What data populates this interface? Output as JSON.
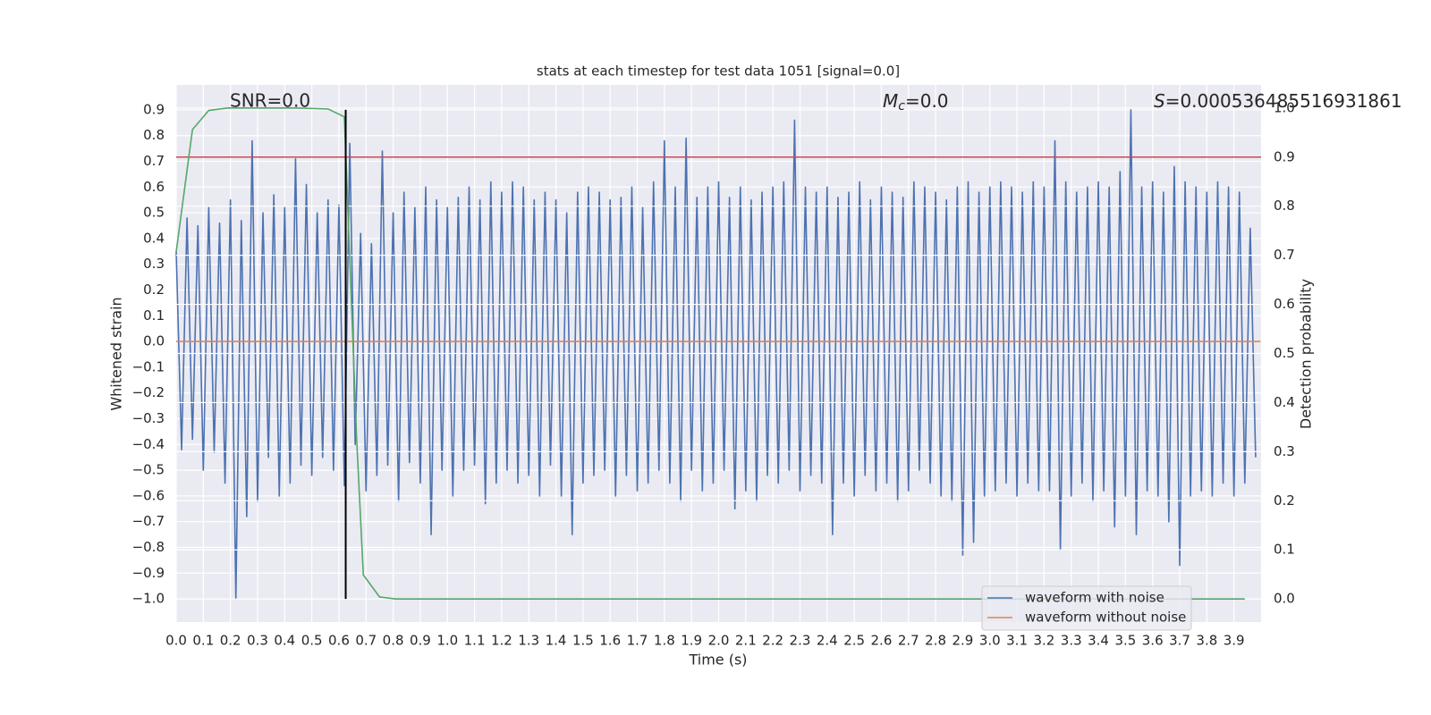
{
  "chart_data": {
    "type": "line",
    "title": "stats at each timestep for test data 1051 [signal=0.0]",
    "xlabel": "Time (s)",
    "ylabel": "Whitened strain",
    "y2label": "Detection probability",
    "annotations": {
      "snr": {
        "text": "SNR=0.0"
      },
      "mc": {
        "symbol": "M",
        "subscript": "c",
        "text": "=0.0"
      },
      "s": {
        "symbol": "S",
        "text": "=0.000536485516931861"
      }
    },
    "xlim": [
      0,
      4.0
    ],
    "ylim": [
      -1.09,
      0.997
    ],
    "y2lim": [
      -0.047,
      1.047
    ],
    "grid": true,
    "legend": "lower right",
    "xticks": [
      {
        "value": 0,
        "label": "0.0"
      },
      0.1,
      0.2,
      0.3,
      0.4,
      0.5,
      0.6,
      0.7,
      0.8,
      0.9,
      {
        "value": 1,
        "label": "1.0"
      },
      1.1,
      1.2,
      1.3,
      1.4,
      1.5,
      1.6,
      1.7,
      1.8,
      1.9,
      {
        "value": 2,
        "label": "2.0"
      },
      2.1,
      2.2,
      2.3,
      2.4,
      2.5,
      2.6,
      2.7,
      2.8,
      2.9,
      {
        "value": 3,
        "label": "3.0"
      },
      3.1,
      3.2,
      3.3,
      3.4,
      3.5,
      3.6,
      3.7,
      3.8,
      3.9
    ],
    "yticks": [
      0.9,
      0.8,
      0.7,
      0.6,
      0.5,
      0.4,
      0.3,
      0.2,
      0.1,
      {
        "value": 0,
        "label": "0.0"
      },
      {
        "value": -0.1,
        "label": "−0.1"
      },
      {
        "value": -0.2,
        "label": "−0.2"
      },
      {
        "value": -0.3,
        "label": "−0.3"
      },
      {
        "value": -0.4,
        "label": "−0.4"
      },
      {
        "value": -0.5,
        "label": "−0.5"
      },
      {
        "value": -0.6,
        "label": "−0.6"
      },
      {
        "value": -0.7,
        "label": "−0.7"
      },
      {
        "value": -0.8,
        "label": "−0.8"
      },
      {
        "value": -0.9,
        "label": "−0.9"
      },
      {
        "value": -1,
        "label": "−1.0"
      }
    ],
    "y2ticks": [
      {
        "value": 0,
        "label": "0.0"
      },
      0.1,
      0.2,
      0.3,
      0.4,
      0.5,
      0.6,
      0.7,
      0.8,
      0.9,
      {
        "value": 1,
        "label": "1.0"
      }
    ],
    "hlines": [
      {
        "value": 0.9,
        "axis": "y2",
        "color": "#c44e52"
      }
    ],
    "vlines": [
      {
        "value": 0.625,
        "ymin": -1.0,
        "ymax": 0.9,
        "color": "#000000"
      }
    ],
    "series": [
      {
        "name": "waveform with noise",
        "color": "#4c72b0",
        "x": [
          0,
          0.02,
          0.04,
          0.06,
          0.08,
          0.1,
          0.12,
          0.14,
          0.16,
          0.18,
          0.2,
          0.22,
          0.24,
          0.26,
          0.28,
          0.3,
          0.32,
          0.34,
          0.36,
          0.38,
          0.4,
          0.42,
          0.44,
          0.46,
          0.48,
          0.5,
          0.52,
          0.54,
          0.56,
          0.58,
          0.6,
          0.62,
          0.64,
          0.66,
          0.68,
          0.7,
          0.72,
          0.74,
          0.76,
          0.78,
          0.8,
          0.82,
          0.84,
          0.86,
          0.88,
          0.9,
          0.92,
          0.94,
          0.96,
          0.98,
          1,
          1.02,
          1.04,
          1.06,
          1.08,
          1.1,
          1.12,
          1.14,
          1.16,
          1.18,
          1.2,
          1.22,
          1.24,
          1.26,
          1.28,
          1.3,
          1.32,
          1.34,
          1.36,
          1.38,
          1.4,
          1.42,
          1.44,
          1.46,
          1.48,
          1.5,
          1.52,
          1.54,
          1.56,
          1.58,
          1.6,
          1.62,
          1.64,
          1.66,
          1.68,
          1.7,
          1.72,
          1.74,
          1.76,
          1.78,
          1.8,
          1.82,
          1.84,
          1.86,
          1.88,
          1.9,
          1.92,
          1.94,
          1.96,
          1.98,
          2,
          2.02,
          2.04,
          2.06,
          2.08,
          2.1,
          2.12,
          2.14,
          2.16,
          2.18,
          2.2,
          2.22,
          2.24,
          2.26,
          2.28,
          2.3,
          2.32,
          2.34,
          2.36,
          2.38,
          2.4,
          2.42,
          2.44,
          2.46,
          2.48,
          2.5,
          2.52,
          2.54,
          2.56,
          2.58,
          2.6,
          2.62,
          2.64,
          2.66,
          2.68,
          2.7,
          2.72,
          2.74,
          2.76,
          2.78,
          2.8,
          2.82,
          2.84,
          2.86,
          2.88,
          2.9,
          2.92,
          2.94,
          2.96,
          2.98,
          3,
          3.02,
          3.04,
          3.06,
          3.08,
          3.1,
          3.12,
          3.14,
          3.16,
          3.18,
          3.2,
          3.22,
          3.24,
          3.26,
          3.28,
          3.3,
          3.32,
          3.34,
          3.36,
          3.38,
          3.4,
          3.42,
          3.44,
          3.46,
          3.48,
          3.5,
          3.52,
          3.54,
          3.56,
          3.58,
          3.6,
          3.62,
          3.64,
          3.66,
          3.68,
          3.7,
          3.72,
          3.74,
          3.76,
          3.78,
          3.8,
          3.82,
          3.84,
          3.86,
          3.88,
          3.9,
          3.92,
          3.94,
          3.96,
          3.98
        ],
        "values": [
          0.35,
          -0.42,
          0.48,
          -0.38,
          0.45,
          -0.5,
          0.52,
          -0.43,
          0.46,
          -0.55,
          0.55,
          -1.0,
          0.47,
          -0.68,
          0.78,
          -0.62,
          0.5,
          -0.45,
          0.57,
          -0.6,
          0.52,
          -0.55,
          0.71,
          -0.48,
          0.61,
          -0.52,
          0.5,
          -0.45,
          0.55,
          -0.5,
          0.53,
          -0.56,
          0.77,
          -0.4,
          0.42,
          -0.58,
          0.38,
          -0.52,
          0.74,
          -0.48,
          0.5,
          -0.62,
          0.58,
          -0.47,
          0.52,
          -0.55,
          0.6,
          -0.75,
          0.55,
          -0.5,
          0.52,
          -0.6,
          0.56,
          -0.5,
          0.6,
          -0.48,
          0.55,
          -0.63,
          0.62,
          -0.55,
          0.58,
          -0.5,
          0.62,
          -0.55,
          0.6,
          -0.52,
          0.55,
          -0.6,
          0.58,
          -0.48,
          0.55,
          -0.6,
          0.5,
          -0.75,
          0.58,
          -0.55,
          0.6,
          -0.52,
          0.58,
          -0.5,
          0.55,
          -0.6,
          0.56,
          -0.52,
          0.6,
          -0.58,
          0.52,
          -0.55,
          0.62,
          -0.5,
          0.78,
          -0.55,
          0.6,
          -0.62,
          0.79,
          -0.5,
          0.56,
          -0.58,
          0.6,
          -0.55,
          0.62,
          -0.5,
          0.56,
          -0.65,
          0.6,
          -0.58,
          0.55,
          -0.62,
          0.58,
          -0.52,
          0.6,
          -0.55,
          0.62,
          -0.5,
          0.86,
          -0.58,
          0.6,
          -0.52,
          0.58,
          -0.55,
          0.6,
          -0.75,
          0.56,
          -0.55,
          0.58,
          -0.6,
          0.62,
          -0.52,
          0.55,
          -0.58,
          0.6,
          -0.55,
          0.58,
          -0.62,
          0.56,
          -0.58,
          0.62,
          -0.5,
          0.6,
          -0.55,
          0.58,
          -0.6,
          0.55,
          -0.62,
          0.6,
          -0.83,
          0.62,
          -0.78,
          0.58,
          -0.6,
          0.6,
          -0.58,
          0.62,
          -0.55,
          0.6,
          -0.6,
          0.58,
          -0.55,
          0.62,
          -0.58,
          0.6,
          -0.58,
          0.78,
          -0.81,
          0.62,
          -0.6,
          0.58,
          -0.55,
          0.6,
          -0.62,
          0.62,
          -0.58,
          0.6,
          -0.72,
          0.66,
          -0.6,
          0.9,
          -0.75,
          0.6,
          -0.58,
          0.62,
          -0.6,
          0.58,
          -0.7,
          0.68,
          -0.87,
          0.62,
          -0.6,
          0.6,
          -0.58,
          0.58,
          -0.6,
          0.62,
          -0.55,
          0.6,
          -0.6,
          0.58,
          -0.55,
          0.44,
          -0.45
        ]
      },
      {
        "name": "waveform without noise",
        "color": "#dd8452",
        "x": [
          0,
          3.998
        ],
        "values": [
          0,
          0
        ]
      },
      {
        "color": "#55a868",
        "axis": "y2",
        "x": [
          0,
          0.06,
          0.12,
          0.19,
          0.25,
          0.31,
          0.37,
          0.44,
          0.5,
          0.56,
          0.62,
          0.665,
          0.69,
          0.75,
          0.81,
          1.5,
          2.5,
          3.5,
          3.94
        ],
        "values": [
          0.707,
          0.956,
          0.995,
          1.0,
          1.0,
          1.0,
          1.0,
          1.0,
          0.999,
          0.998,
          0.982,
          0.33,
          0.049,
          0.004,
          0.0,
          0.0,
          0.0,
          0.0,
          0.0
        ]
      }
    ]
  }
}
